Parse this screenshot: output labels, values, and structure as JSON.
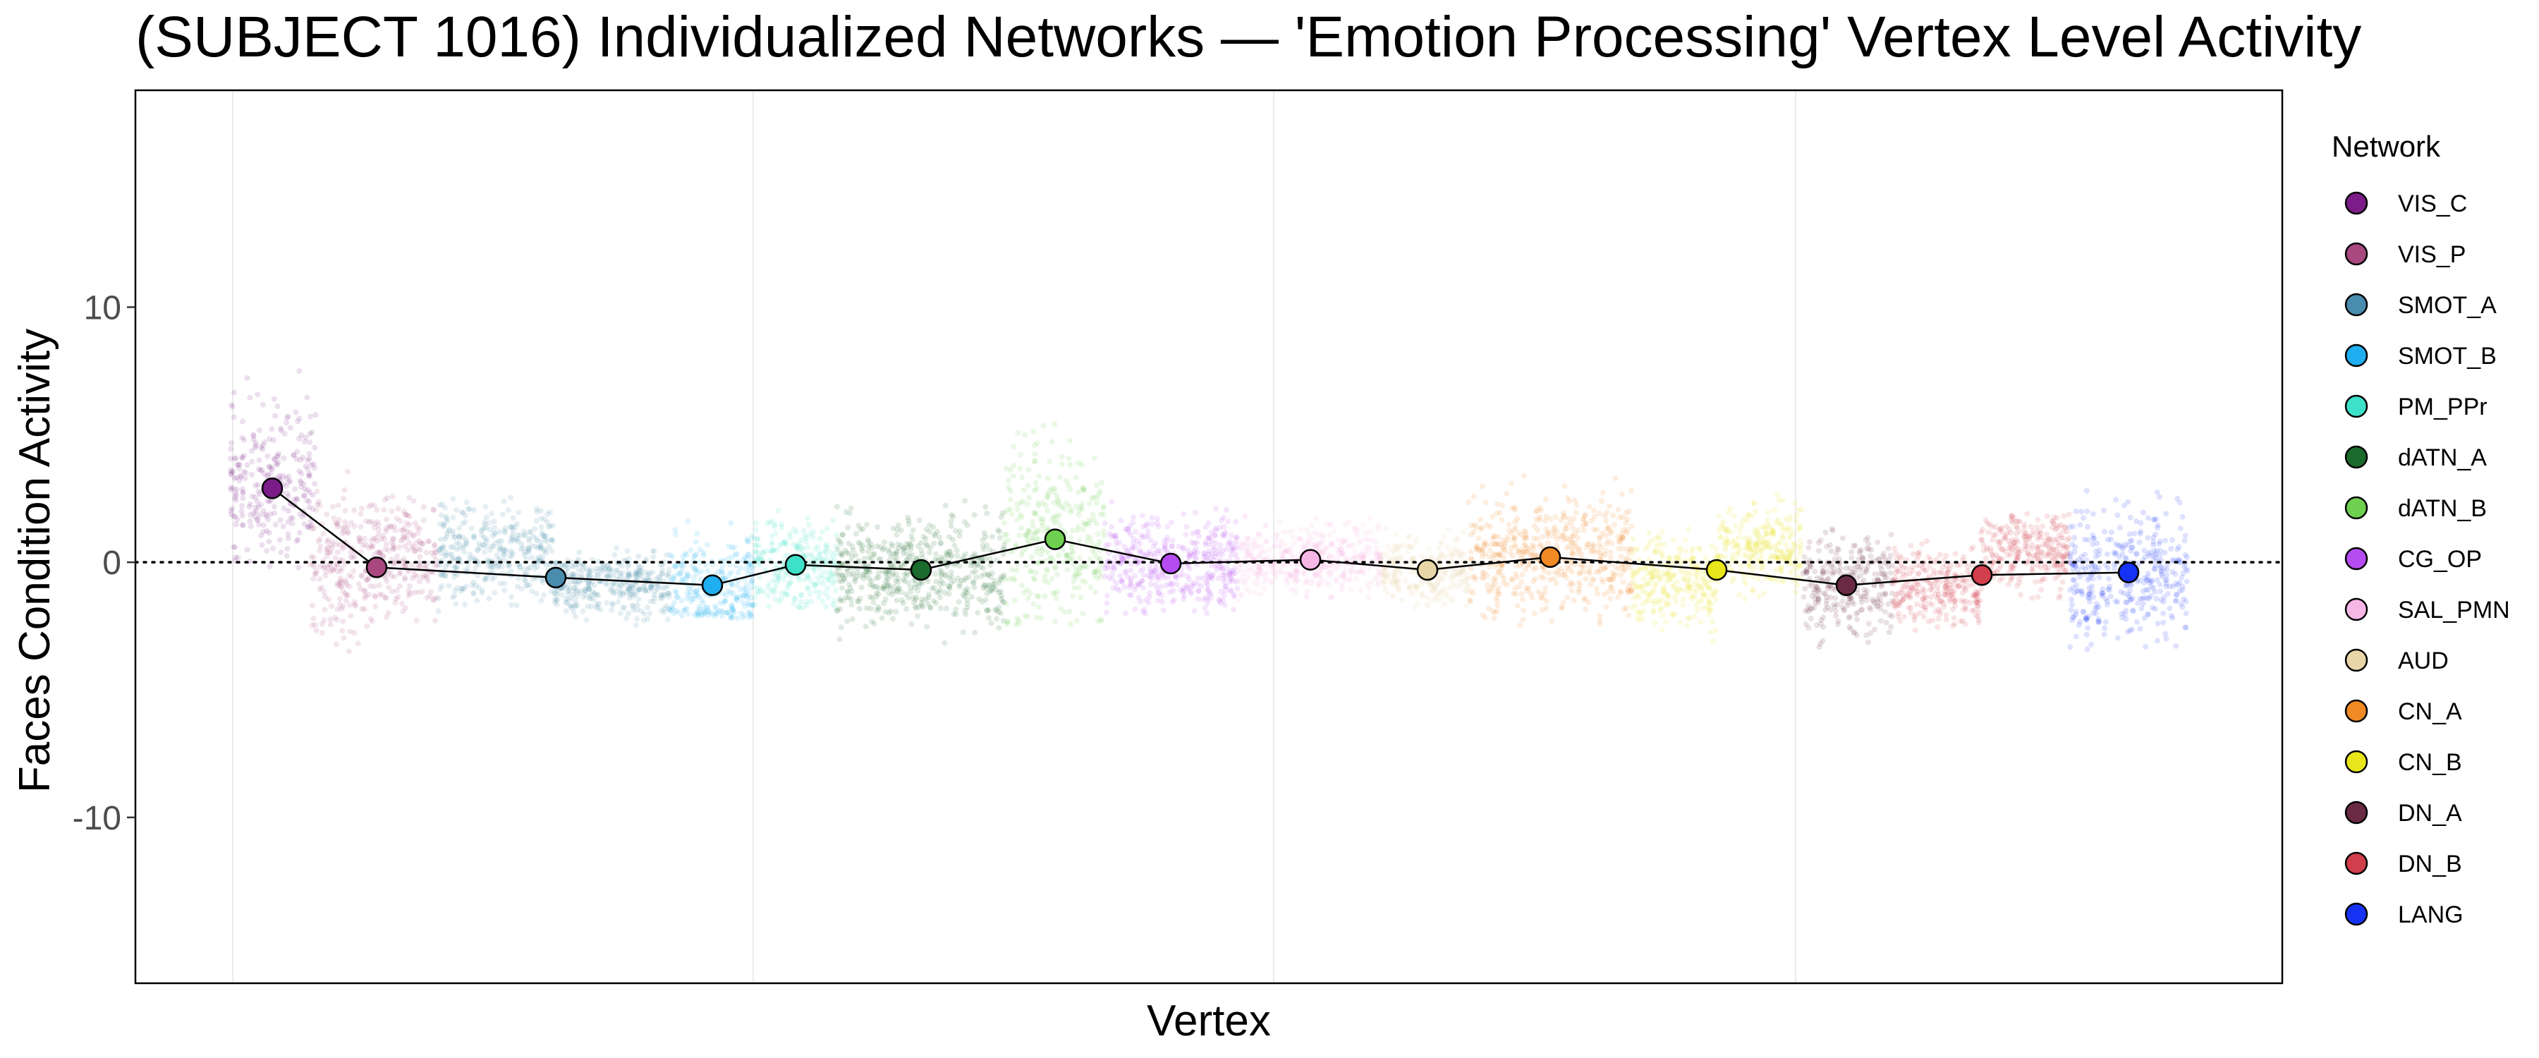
{
  "chart_data": {
    "type": "scatter",
    "title": "(SUBJECT 1016) Individualized Networks — 'Emotion Processing' Vertex Level Activity",
    "xlabel": "Vertex",
    "ylabel": "Faces Condition Activity",
    "ylim": [
      -16.5,
      18.5
    ],
    "yticks": [
      10,
      0,
      -10
    ],
    "ytick_labels": [
      "10",
      "0",
      "-10"
    ],
    "reference_line_y": 0,
    "grid": "vertical only",
    "legend": {
      "title": "Network",
      "position": "right"
    },
    "series": [
      {
        "name": "VIS_C",
        "color": "#7B1C88",
        "mean": 2.9,
        "subgroups": [
          {
            "lo": -0.8,
            "hi": 7.8,
            "mean": 2.9
          }
        ]
      },
      {
        "name": "VIS_P",
        "color": "#A8487E",
        "mean": -0.2,
        "subgroups": [
          {
            "lo": -3.5,
            "hi": 4.0,
            "mean": -0.2
          },
          {
            "lo": -2.8,
            "hi": 3.0,
            "mean": 0.1
          }
        ]
      },
      {
        "name": "SMOT_A",
        "color": "#4A8CAD",
        "mean": -0.6,
        "subgroups": [
          {
            "lo": -2.0,
            "hi": 3.0,
            "mean": 0.4
          },
          {
            "lo": -2.5,
            "hi": 0.6,
            "mean": -0.9
          }
        ]
      },
      {
        "name": "SMOT_B",
        "color": "#1FAEEF",
        "mean": -0.9,
        "subgroups": [
          {
            "lo": -2.2,
            "hi": 2.6,
            "mean": -0.9
          }
        ]
      },
      {
        "name": "PM_PPr",
        "color": "#3DE0C9",
        "mean": -0.1,
        "subgroups": [
          {
            "lo": -1.8,
            "hi": 2.8,
            "mean": -0.1
          }
        ]
      },
      {
        "name": "dATN_A",
        "color": "#1A6B2C",
        "mean": -0.3,
        "subgroups": [
          {
            "lo": -3.2,
            "hi": 2.5,
            "mean": -0.3
          }
        ]
      },
      {
        "name": "dATN_B",
        "color": "#6DD04E",
        "mean": 0.9,
        "subgroups": [
          {
            "lo": -2.5,
            "hi": 7.5,
            "mean": 0.9
          }
        ]
      },
      {
        "name": "CG_OP",
        "color": "#B54CF2",
        "mean": -0.05,
        "subgroups": [
          {
            "lo": -2.2,
            "hi": 2.5,
            "mean": -0.05
          }
        ]
      },
      {
        "name": "SAL_PMN",
        "color": "#F7B7E6",
        "mean": 0.1,
        "subgroups": [
          {
            "lo": -1.5,
            "hi": 2.0,
            "mean": 0.1
          }
        ]
      },
      {
        "name": "AUD",
        "color": "#E8D6A8",
        "mean": -0.3,
        "subgroups": [
          {
            "lo": -2.0,
            "hi": 1.5,
            "mean": -0.3
          }
        ]
      },
      {
        "name": "CN_A",
        "color": "#F08A24",
        "mean": 0.2,
        "subgroups": [
          {
            "lo": -2.5,
            "hi": 3.8,
            "mean": 0.2
          }
        ]
      },
      {
        "name": "CN_B",
        "color": "#E8E51A",
        "mean": -0.3,
        "subgroups": [
          {
            "lo": -3.5,
            "hi": 1.5,
            "mean": -0.8
          },
          {
            "lo": -1.5,
            "hi": 2.8,
            "mean": 0.5
          }
        ]
      },
      {
        "name": "DN_A",
        "color": "#6A2A44",
        "mean": -0.9,
        "subgroups": [
          {
            "lo": -3.8,
            "hi": 1.5,
            "mean": -0.9
          }
        ]
      },
      {
        "name": "DN_B",
        "color": "#D13E4C",
        "mean": -0.5,
        "subgroups": [
          {
            "lo": -3.2,
            "hi": 1.0,
            "mean": -1.0
          },
          {
            "lo": -1.8,
            "hi": 2.0,
            "mean": 0.4
          }
        ]
      },
      {
        "name": "LANG",
        "color": "#1633F5",
        "mean": -0.4,
        "subgroups": [
          {
            "lo": -3.5,
            "hi": 3.5,
            "mean": -0.4
          }
        ]
      }
    ]
  }
}
